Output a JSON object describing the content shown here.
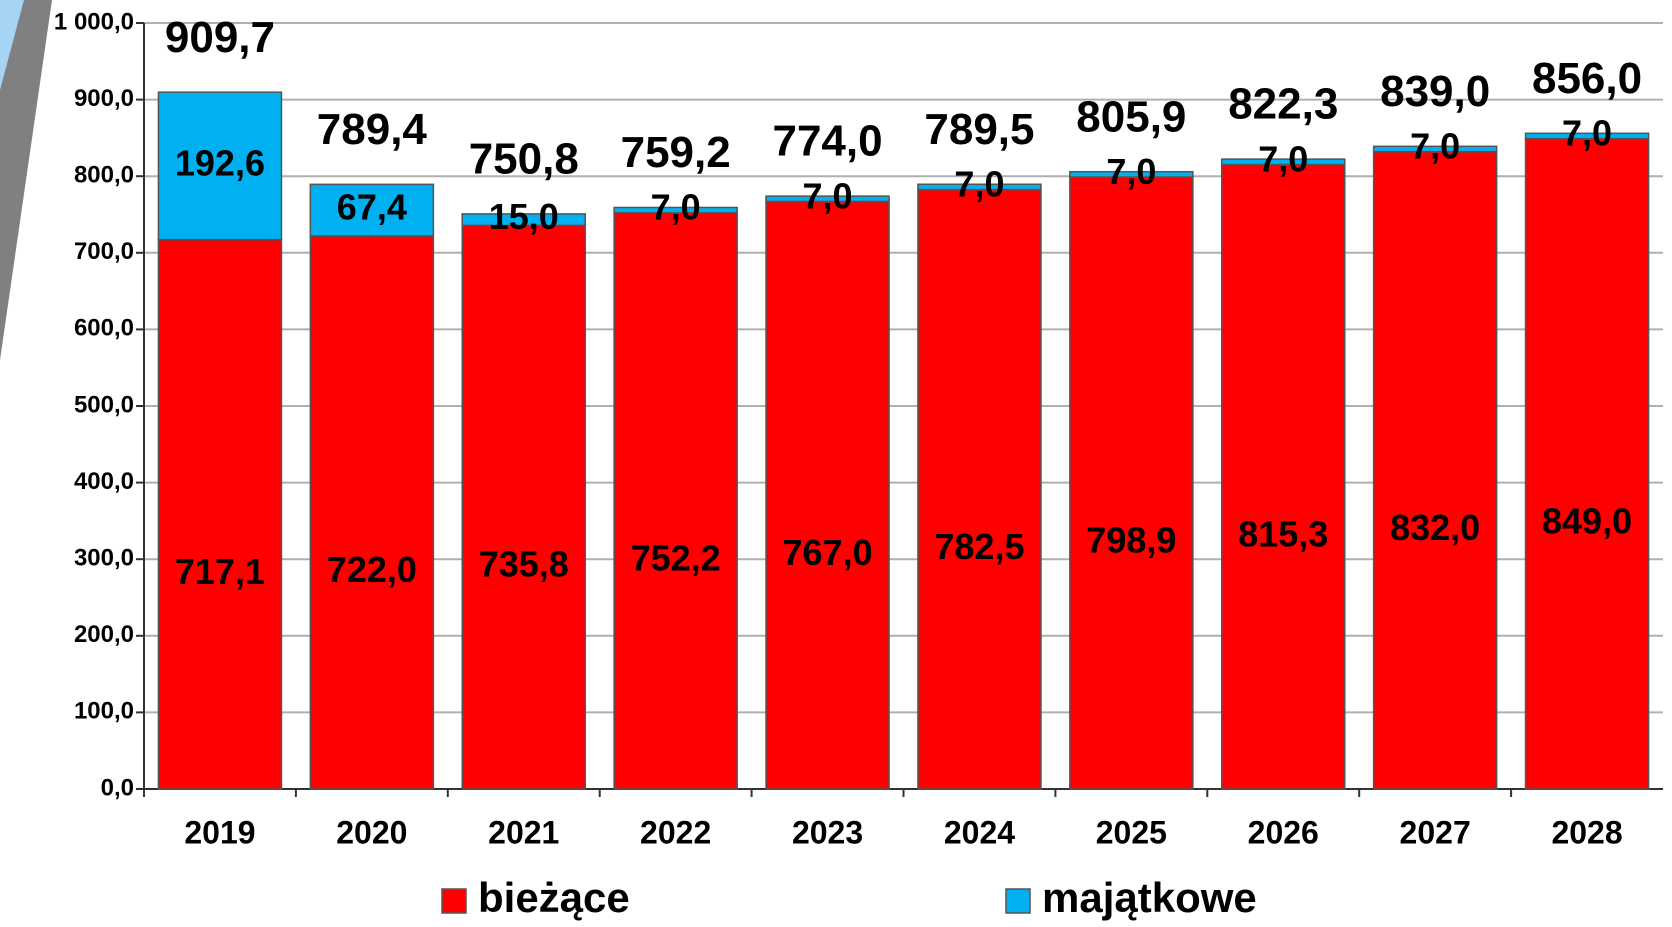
{
  "chart_data": {
    "type": "stacked_bar",
    "categories": [
      "2019",
      "2020",
      "2021",
      "2022",
      "2023",
      "2024",
      "2025",
      "2026",
      "2027",
      "2028"
    ],
    "series": [
      {
        "name": "bieżące",
        "color": "#ff0000",
        "values": [
          717.1,
          722.0,
          735.8,
          752.2,
          767.0,
          782.5,
          798.9,
          815.3,
          832.0,
          849.0
        ],
        "value_labels": [
          "717,1",
          "722,0",
          "735,8",
          "752,2",
          "767,0",
          "782,5",
          "798,9",
          "815,3",
          "832,0",
          "849,0"
        ]
      },
      {
        "name": "majątkowe",
        "color": "#00b0f0",
        "values": [
          192.6,
          67.4,
          15.0,
          7.0,
          7.0,
          7.0,
          7.0,
          7.0,
          7.0,
          7.0
        ],
        "value_labels": [
          "192,6",
          "67,4",
          "15,0",
          "7,0",
          "7,0",
          "7,0",
          "7,0",
          "7,0",
          "7,0",
          "7,0"
        ]
      }
    ],
    "totals": {
      "values": [
        909.7,
        789.4,
        750.8,
        759.2,
        774.0,
        789.5,
        805.9,
        822.3,
        839.0,
        856.0
      ],
      "value_labels": [
        "909,7",
        "789,4",
        "750,8",
        "759,2",
        "774,0",
        "789,5",
        "805,9",
        "822,3",
        "839,0",
        "856,0"
      ]
    },
    "ylim": [
      0,
      1000
    ],
    "yticks": [
      {
        "value": 0,
        "label": "0,0"
      },
      {
        "value": 100,
        "label": "100,0"
      },
      {
        "value": 200,
        "label": "200,0"
      },
      {
        "value": 300,
        "label": "300,0"
      },
      {
        "value": 400,
        "label": "400,0"
      },
      {
        "value": 500,
        "label": "500,0"
      },
      {
        "value": 600,
        "label": "600,0"
      },
      {
        "value": 700,
        "label": "700,0"
      },
      {
        "value": 800,
        "label": "800,0"
      },
      {
        "value": 900,
        "label": "900,0"
      },
      {
        "value": 1000,
        "label": "1 000,0"
      }
    ],
    "grid": true,
    "legend": "bottom"
  }
}
